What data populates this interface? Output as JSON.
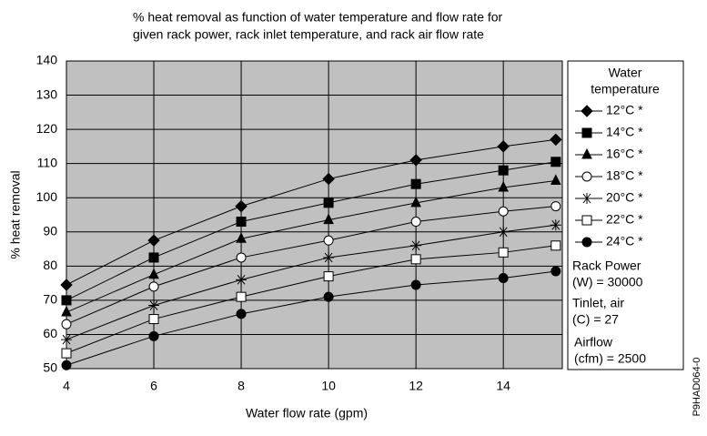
{
  "chart_data": {
    "type": "line",
    "title": [
      "% heat removal as function of water temperature and flow rate for",
      "given rack power, rack inlet temperature, and rack air flow rate"
    ],
    "x_label": "Water flow rate (gpm)",
    "y_label": "% heat removal",
    "x": [
      4,
      6,
      8,
      10,
      12,
      14,
      15.2
    ],
    "xlim": [
      4,
      15.35
    ],
    "xticks": [
      4,
      6,
      8,
      10,
      12,
      14
    ],
    "ylim": [
      50,
      140
    ],
    "yticks": [
      50,
      60,
      70,
      80,
      90,
      100,
      110,
      120,
      130,
      140
    ],
    "grid": true,
    "legend_title": [
      "Water",
      "temperature"
    ],
    "series": [
      {
        "name": "12°C *",
        "color": "#000000",
        "marker": "diamond",
        "values": [
          74.5,
          87.5,
          97.5,
          105.5,
          111,
          115,
          117
        ]
      },
      {
        "name": "14°C *",
        "color": "#000000",
        "marker": "square",
        "values": [
          70,
          82.5,
          93,
          98.5,
          104,
          108,
          110.5
        ]
      },
      {
        "name": "16°C *",
        "color": "#000000",
        "marker": "triangle",
        "values": [
          66.5,
          77.5,
          88,
          93.5,
          98.5,
          103,
          105
        ]
      },
      {
        "name": "18°C *",
        "color": "#000000",
        "marker": "open-circle",
        "values": [
          63,
          74,
          82.5,
          87.5,
          93,
          96,
          97.5
        ]
      },
      {
        "name": "20°C *",
        "color": "#000000",
        "marker": "asterisk",
        "values": [
          58.5,
          68.5,
          76,
          82.5,
          86,
          90,
          92
        ]
      },
      {
        "name": "22°C *",
        "color": "#000000",
        "marker": "open-square",
        "values": [
          54.5,
          64.5,
          71,
          77,
          82,
          84,
          86
        ]
      },
      {
        "name": "24°C *",
        "color": "#000000",
        "marker": "circle",
        "values": [
          51,
          59.5,
          66,
          71,
          74.5,
          76.5,
          78.5
        ]
      }
    ],
    "annotations": [
      "Rack Power",
      "(W) = 30000",
      "Tinlet, air",
      "(C) = 27",
      "Airflow",
      "(cfm) = 2500"
    ],
    "figure_id": "P9HAD064-0"
  }
}
